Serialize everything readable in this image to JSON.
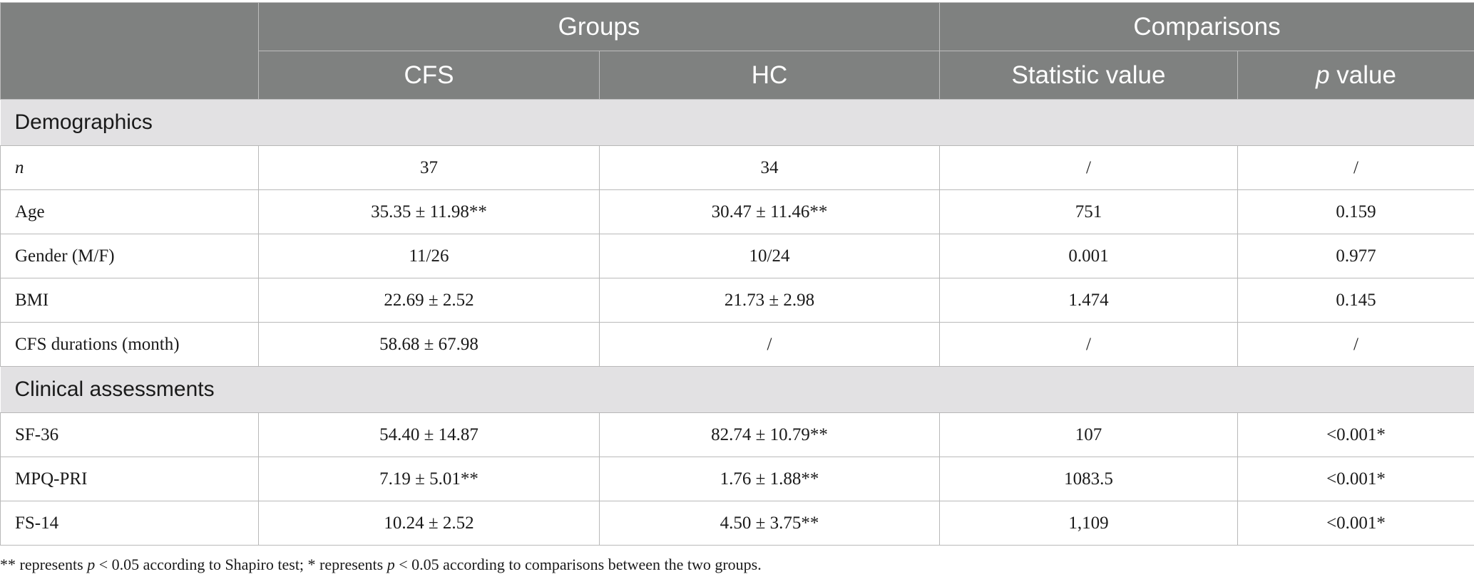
{
  "header": {
    "groups_label": "Groups",
    "comparisons_label": "Comparisons",
    "cfs_label": "CFS",
    "hc_label": "HC",
    "statistic_label": "Statistic value",
    "p_italic": "p",
    "p_value_rest": " value"
  },
  "sections": [
    {
      "title": "Demographics",
      "rows": [
        {
          "label": "n",
          "label_italic": true,
          "cfs": "37",
          "hc": "34",
          "statistic": "/",
          "p": "/"
        },
        {
          "label": "Age",
          "cfs": "35.35 ± 11.98**",
          "hc": "30.47 ± 11.46**",
          "statistic": "751",
          "p": "0.159"
        },
        {
          "label": "Gender (M/F)",
          "cfs": "11/26",
          "hc": "10/24",
          "statistic": "0.001",
          "p": "0.977"
        },
        {
          "label": "BMI",
          "cfs": "22.69 ± 2.52",
          "hc": "21.73 ± 2.98",
          "statistic": "1.474",
          "p": "0.145"
        },
        {
          "label": "CFS durations (month)",
          "cfs": "58.68 ± 67.98",
          "hc": "/",
          "statistic": "/",
          "p": "/"
        }
      ]
    },
    {
      "title": "Clinical assessments",
      "rows": [
        {
          "label": "SF-36",
          "cfs": "54.40 ± 14.87",
          "hc": "82.74 ± 10.79**",
          "statistic": "107",
          "p": "<0.001*"
        },
        {
          "label": "MPQ-PRI",
          "cfs": "7.19 ± 5.01**",
          "hc": "1.76 ± 1.88**",
          "statistic": "1083.5",
          "p": "<0.001*"
        },
        {
          "label": "FS-14",
          "cfs": "10.24 ± 2.52",
          "hc": "4.50 ± 3.75**",
          "statistic": "1,109",
          "p": "<0.001*"
        }
      ]
    }
  ],
  "footnote": {
    "part1": "** represents ",
    "p1": "p",
    "part2": " < 0.05 according to Shapiro test; * represents ",
    "p2": "p",
    "part3": " < 0.05 according to comparisons between the two groups."
  }
}
